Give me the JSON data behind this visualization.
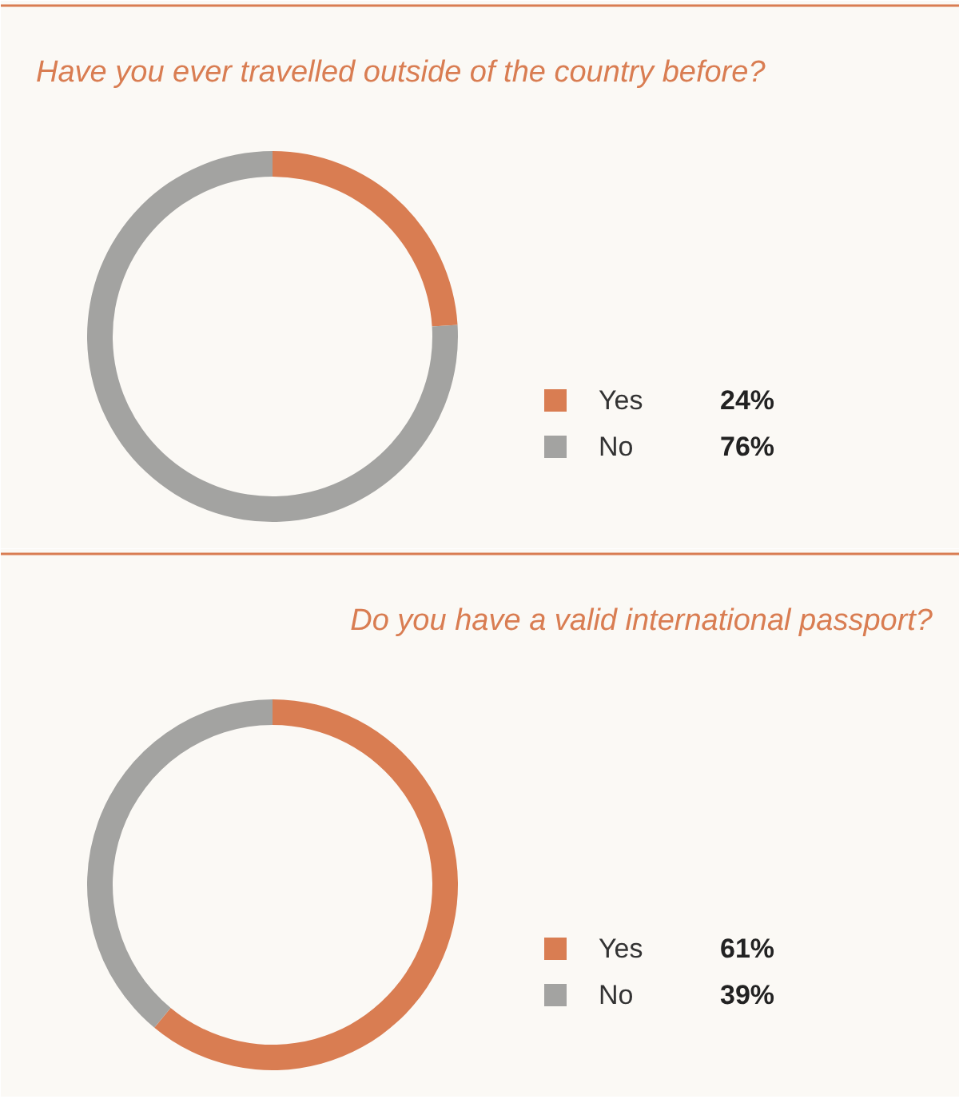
{
  "chart_data": [
    {
      "type": "donut",
      "title": "Have you ever travelled outside of the country before?",
      "categories": [
        "Yes",
        "No"
      ],
      "values": [
        24,
        76
      ],
      "colors": [
        "#d97d52",
        "#a3a3a1"
      ],
      "value_labels": [
        "24%",
        "76%"
      ],
      "legend": "right"
    },
    {
      "type": "donut",
      "title": "Do you have a valid international passport?",
      "categories": [
        "Yes",
        "No"
      ],
      "values": [
        61,
        39
      ],
      "colors": [
        "#d97d52",
        "#a3a3a1"
      ],
      "value_labels": [
        "61%",
        "39%"
      ],
      "legend": "right"
    }
  ]
}
